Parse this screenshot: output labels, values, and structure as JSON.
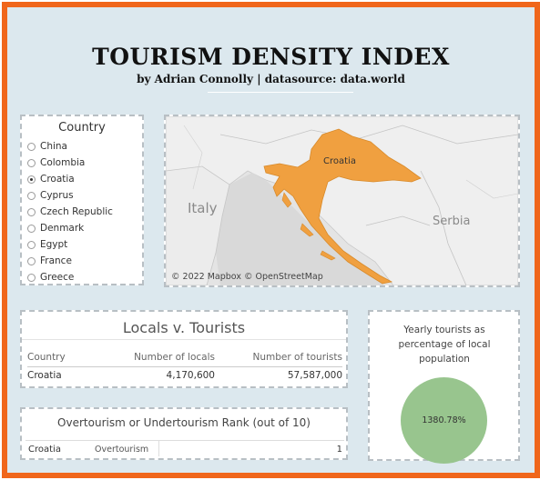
{
  "header": {
    "title": "TOURISM DENSITY INDEX",
    "subtitle": "by Adrian Connolly | datasource: data.world"
  },
  "country_filter": {
    "heading": "Country",
    "options": [
      {
        "label": "China",
        "selected": false
      },
      {
        "label": "Colombia",
        "selected": false
      },
      {
        "label": "Croatia",
        "selected": true
      },
      {
        "label": "Cyprus",
        "selected": false
      },
      {
        "label": "Czech Republic",
        "selected": false
      },
      {
        "label": "Denmark",
        "selected": false
      },
      {
        "label": "Egypt",
        "selected": false
      },
      {
        "label": "France",
        "selected": false
      },
      {
        "label": "Greece",
        "selected": false
      }
    ]
  },
  "map": {
    "highlight_label": "Croatia",
    "labels": [
      "Italy",
      "Serbia"
    ],
    "attribution": "© 2022 Mapbox  © OpenStreetMap",
    "highlight_color": "#f0a040"
  },
  "locals_vs_tourists": {
    "title": "Locals v. Tourists",
    "columns": [
      "Country",
      "Number of locals",
      "Number of tourists"
    ],
    "row": [
      "Croatia",
      "4,170,600",
      "57,587,000"
    ]
  },
  "rank": {
    "title": "Overtourism or Undertourism Rank (out of 10)",
    "country": "Croatia",
    "label": "Overtourism",
    "value": "1"
  },
  "yearly_tourists": {
    "title": "Yearly tourists as percentage of local population",
    "value": "1380.78%",
    "color": "#98c58e"
  },
  "colors": {
    "border": "#f0661b",
    "background": "#dce8ee"
  }
}
